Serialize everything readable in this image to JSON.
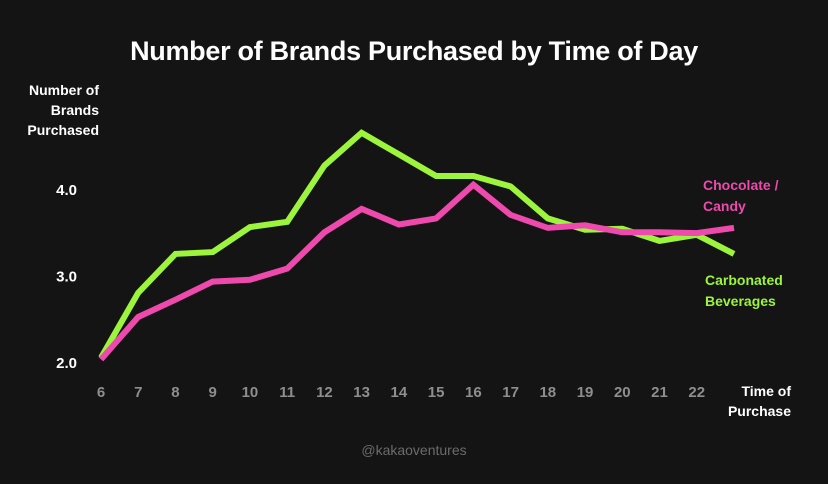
{
  "chart_data": {
    "type": "line",
    "title": "Number of Brands Purchased by Time of Day",
    "ylabel": [
      "Number of",
      "Brands",
      "Purchased"
    ],
    "xlabel": [
      "Time of",
      "Purchase"
    ],
    "x": [
      6,
      7,
      8,
      9,
      10,
      11,
      12,
      13,
      14,
      15,
      16,
      17,
      18,
      19,
      20,
      21,
      22,
      23
    ],
    "x_tick_labels": [
      "6",
      "7",
      "8",
      "9",
      "10",
      "11",
      "12",
      "13",
      "14",
      "15",
      "16",
      "17",
      "18",
      "19",
      "20",
      "21",
      "22"
    ],
    "y_ticks": [
      2.0,
      3.0,
      4.0
    ],
    "y_tick_labels": [
      "2.0",
      "3.0",
      "4.0"
    ],
    "xlim": [
      6,
      23
    ],
    "ylim": [
      2.0,
      4.0
    ],
    "grid": false,
    "legend": "inline-right",
    "series": [
      {
        "name": [
          "Carbonated",
          "Beverages"
        ],
        "color": "#9cf53c",
        "values": [
          2.05,
          2.8,
          3.25,
          3.27,
          3.56,
          3.62,
          4.27,
          4.65,
          4.4,
          4.15,
          4.15,
          4.03,
          3.66,
          3.53,
          3.54,
          3.4,
          3.47,
          3.25
        ]
      },
      {
        "name": [
          "Chocolate /",
          "Candy"
        ],
        "color": "#ee49ad",
        "values": [
          2.03,
          2.52,
          2.72,
          2.93,
          2.95,
          3.08,
          3.5,
          3.77,
          3.59,
          3.66,
          4.05,
          3.7,
          3.55,
          3.58,
          3.5,
          3.5,
          3.49,
          3.55
        ]
      }
    ],
    "watermark": "@kakaoventures"
  }
}
